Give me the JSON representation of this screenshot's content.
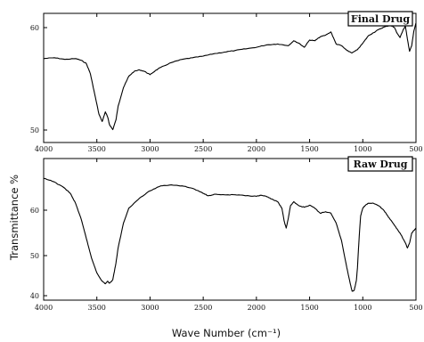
{
  "figure": {
    "ylabel": "Transmittance %",
    "xlabel": "Wave Number (cm⁻¹)"
  },
  "chart_data": [
    {
      "type": "line",
      "legend": "Final Drug",
      "xlim": [
        4000,
        500
      ],
      "ylim": [
        48,
        64
      ],
      "x_ticks": [
        "4000",
        "3500",
        "3000",
        "2500",
        "2000",
        "1500",
        "1000",
        "500"
      ],
      "y_ticks": [
        "60",
        "50"
      ],
      "grid": false,
      "series": [
        {
          "x": [
            4000,
            3900,
            3800,
            3700,
            3650,
            3600,
            3560,
            3520,
            3480,
            3450,
            3420,
            3400,
            3380,
            3350,
            3320,
            3300,
            3250,
            3200,
            3150,
            3100,
            3050,
            3000,
            2950,
            2900,
            2800,
            2700,
            2600,
            2500,
            2400,
            2300,
            2200,
            2100,
            2000,
            1900,
            1800,
            1700,
            1650,
            1600,
            1550,
            1500,
            1450,
            1400,
            1350,
            1300,
            1250,
            1200,
            1150,
            1100,
            1050,
            1000,
            950,
            900,
            850,
            800,
            750,
            720,
            700,
            680,
            650,
            620,
            600,
            580,
            560,
            540,
            520,
            500
          ],
          "values": [
            58.4,
            58.5,
            58.3,
            58.4,
            58.2,
            57.8,
            56.5,
            54.0,
            51.5,
            50.6,
            51.8,
            51.2,
            50.2,
            49.6,
            50.8,
            52.5,
            54.8,
            56.2,
            56.8,
            57.0,
            56.8,
            56.4,
            56.9,
            57.3,
            57.9,
            58.3,
            58.5,
            58.7,
            59.0,
            59.2,
            59.4,
            59.6,
            59.8,
            60.1,
            60.2,
            60.0,
            60.6,
            60.3,
            59.8,
            60.7,
            60.6,
            61.1,
            61.3,
            61.7,
            60.2,
            60.0,
            59.4,
            59.1,
            59.5,
            60.3,
            61.2,
            61.6,
            62.0,
            62.3,
            62.5,
            62.4,
            62.2,
            61.6,
            61.0,
            62.0,
            62.4,
            60.8,
            59.3,
            60.0,
            61.8,
            62.8
          ]
        }
      ]
    },
    {
      "type": "line",
      "legend": "Raw Drug",
      "xlim": [
        4000,
        500
      ],
      "ylim": [
        38.5,
        67
      ],
      "x_ticks": [
        "4000",
        "3500",
        "3000",
        "2500",
        "2000",
        "1500",
        "1000",
        "500"
      ],
      "y_ticks": [
        "60",
        "50",
        "40"
      ],
      "grid": false,
      "series": [
        {
          "x": [
            4000,
            3900,
            3800,
            3750,
            3700,
            3650,
            3600,
            3550,
            3500,
            3450,
            3420,
            3400,
            3380,
            3350,
            3320,
            3300,
            3250,
            3200,
            3100,
            3000,
            2900,
            2800,
            2700,
            2600,
            2500,
            2450,
            2400,
            2300,
            2200,
            2100,
            2000,
            1950,
            1900,
            1850,
            1800,
            1760,
            1740,
            1720,
            1700,
            1680,
            1650,
            1600,
            1550,
            1500,
            1450,
            1400,
            1350,
            1300,
            1250,
            1200,
            1150,
            1120,
            1100,
            1080,
            1060,
            1050,
            1040,
            1030,
            1020,
            1000,
            980,
            950,
            900,
            850,
            800,
            750,
            700,
            650,
            600,
            580,
            560,
            540,
            520,
            500
          ],
          "values": [
            63.0,
            62.3,
            61.0,
            60.0,
            58.0,
            55.0,
            51.0,
            47.0,
            44.0,
            42.3,
            41.8,
            42.3,
            41.9,
            42.6,
            46.0,
            49.0,
            54.0,
            57.0,
            59.0,
            60.5,
            61.5,
            61.7,
            61.5,
            61.0,
            60.0,
            59.5,
            59.8,
            59.7,
            59.7,
            59.5,
            59.4,
            59.6,
            59.3,
            58.8,
            58.3,
            57.0,
            54.5,
            53.0,
            55.0,
            57.5,
            58.3,
            57.5,
            57.2,
            57.6,
            57.0,
            56.0,
            56.3,
            56.0,
            54.0,
            50.5,
            45.0,
            42.0,
            40.3,
            40.5,
            42.5,
            45.0,
            49.0,
            52.5,
            55.5,
            57.0,
            57.5,
            58.0,
            58.0,
            57.5,
            56.5,
            55.0,
            53.5,
            52.0,
            50.0,
            49.0,
            50.0,
            52.0,
            52.5,
            53.0
          ]
        }
      ]
    }
  ]
}
